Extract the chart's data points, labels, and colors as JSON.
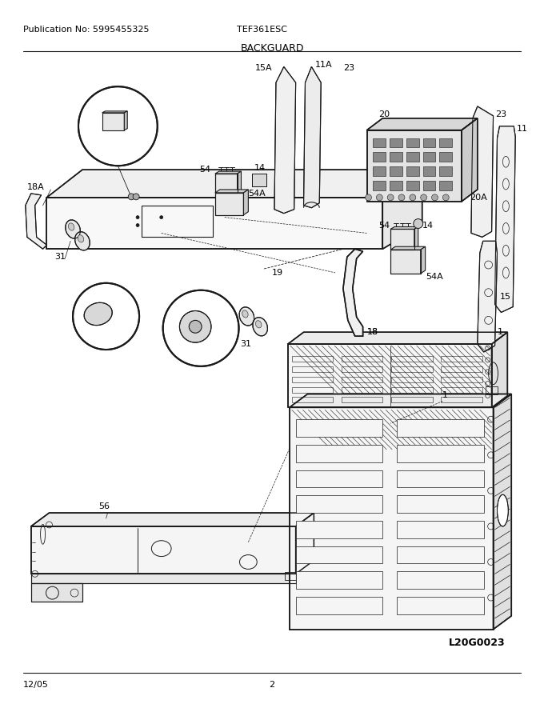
{
  "pub_no": "Publication No: 5995455325",
  "model": "TEF361ESC",
  "section": "BACKGUARD",
  "date": "12/05",
  "page": "2",
  "diagram_id": "L20G0023",
  "bg_color": "#ffffff",
  "line_color": "#1a1a1a",
  "title_fontsize": 9,
  "header_fontsize": 8,
  "footer_fontsize": 8,
  "label_fontsize": 8,
  "fig_w": 6.8,
  "fig_h": 8.8,
  "dpi": 100
}
